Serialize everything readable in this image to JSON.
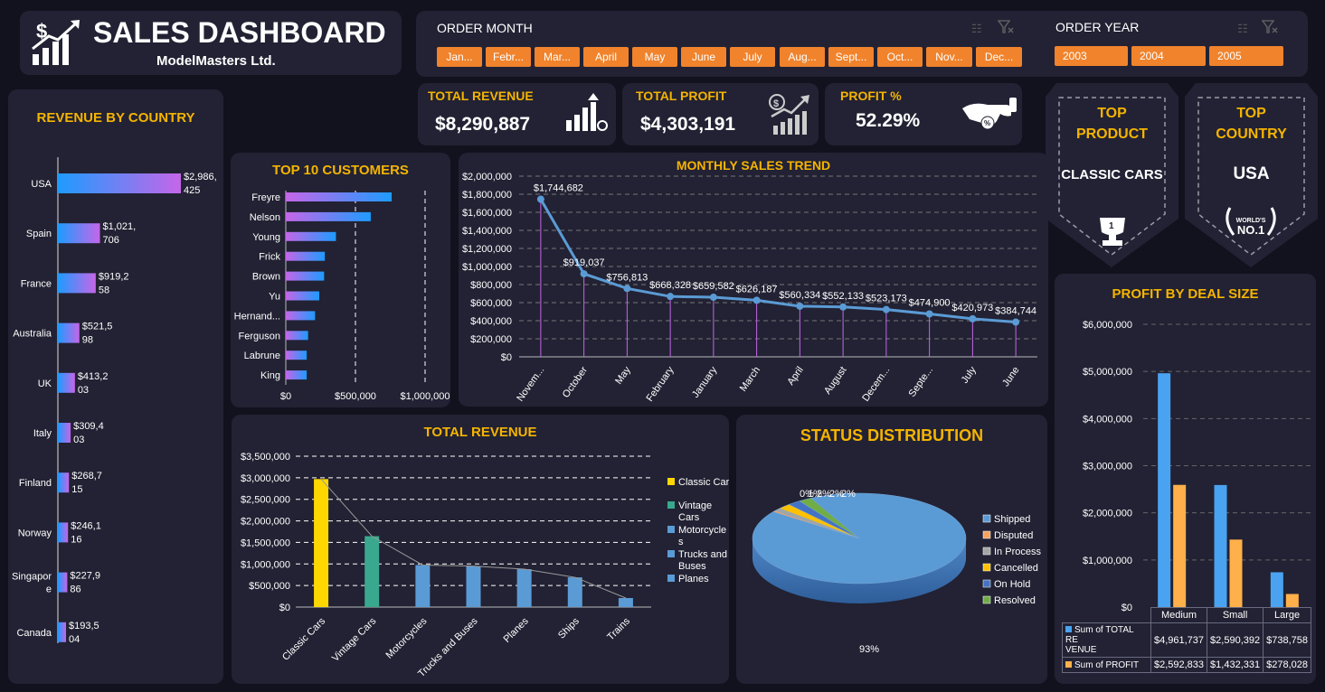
{
  "header": {
    "title": "SALES DASHBOARD",
    "subtitle": "ModelMasters Ltd."
  },
  "order_month": {
    "label": "ORDER MONTH",
    "months": [
      "Jan...",
      "Febr...",
      "Mar...",
      "April",
      "May",
      "June",
      "July",
      "Aug...",
      "Sept...",
      "Oct...",
      "Nov...",
      "Dec..."
    ]
  },
  "order_year": {
    "label": "ORDER YEAR",
    "years": [
      "2003",
      "2004",
      "2005"
    ]
  },
  "kpis": {
    "revenue": {
      "label": "TOTAL REVENUE",
      "value": "$8,290,887"
    },
    "profit": {
      "label": "TOTAL PROFIT",
      "value": "$4,303,191"
    },
    "profit_pct": {
      "label": "PROFIT %",
      "value": "52.29%"
    }
  },
  "top_product": {
    "line1": "TOP",
    "line2": "PRODUCT",
    "value": "CLASSIC CARS"
  },
  "top_country": {
    "line1": "TOP",
    "line2": "COUNTRY",
    "value": "USA",
    "badge_top": "WORLD'S",
    "badge_main": "NO.1"
  },
  "colors": {
    "accent": "#f5b400",
    "slicer": "#f0832c",
    "panel": "#222234",
    "background": "#12121f"
  },
  "chart_data": [
    {
      "type": "bar",
      "title": "REVENUE BY COUNTRY",
      "orientation": "horizontal",
      "categories": [
        "USA",
        "Spain",
        "France",
        "Australia",
        "UK",
        "Italy",
        "Finland",
        "Norway",
        "Singapore",
        "Canada"
      ],
      "category_display": [
        [
          "USA"
        ],
        [
          "Spain"
        ],
        [
          "France"
        ],
        [
          "Australia"
        ],
        [
          "UK"
        ],
        [
          "Italy"
        ],
        [
          "Finland"
        ],
        [
          "Norway"
        ],
        [
          "Singapor",
          "e"
        ],
        [
          "Canada"
        ]
      ],
      "values": [
        2986425,
        1021706,
        919258,
        521598,
        413203,
        309403,
        268715,
        246116,
        227986,
        193504
      ],
      "labels": [
        [
          "$2,986,",
          "425"
        ],
        [
          "$1,021,",
          "706"
        ],
        [
          "$919,2",
          "58"
        ],
        [
          "$521,5",
          "98"
        ],
        [
          "$413,2",
          "03"
        ],
        [
          "$309,4",
          "03"
        ],
        [
          "$268,7",
          "15"
        ],
        [
          "$246,1",
          "16"
        ],
        [
          "$227,9",
          "86"
        ],
        [
          "$193,5",
          "04"
        ]
      ]
    },
    {
      "type": "bar",
      "title": "TOP 10 CUSTOMERS",
      "orientation": "horizontal",
      "categories": [
        "Freyre",
        "Nelson",
        "Young",
        "Frick",
        "Brown",
        "Yu",
        "Hernand...",
        "Ferguson",
        "Labrune",
        "King"
      ],
      "values": [
        760000,
        610000,
        360000,
        280000,
        275000,
        240000,
        210000,
        160000,
        150000,
        150000
      ],
      "xlim": [
        0,
        1000000
      ],
      "x_ticks": [
        "$0",
        "$500,000",
        "$1,000,000"
      ]
    },
    {
      "type": "line",
      "title": "MONTHLY SALES TREND",
      "categories": [
        "Novem...",
        "October",
        "May",
        "February",
        "January",
        "March",
        "April",
        "August",
        "Decem...",
        "Septe...",
        "July",
        "June"
      ],
      "values": [
        1744682,
        919037,
        756813,
        668328,
        659582,
        626187,
        560334,
        552133,
        523173,
        474900,
        420973,
        384744
      ],
      "labels": [
        "$1,744,682",
        "$919,037",
        "$756,813",
        "$668,328",
        "$659,582",
        "$626,187",
        "$560,334",
        "$552,133",
        "$523,173",
        "$474,900",
        "$420,973",
        "$384,744"
      ],
      "ylim": [
        0,
        2000000
      ],
      "y_ticks": [
        "$0",
        "$200,000",
        "$400,000",
        "$600,000",
        "$800,000",
        "$1,000,000",
        "$1,200,000",
        "$1,400,000",
        "$1,600,000",
        "$1,800,000",
        "$2,000,000"
      ]
    },
    {
      "type": "bar",
      "title": "TOTAL REVENUE",
      "categories": [
        "Classic Cars",
        "Vintage Cars",
        "Motorcycles",
        "Trucks and Buses",
        "Planes",
        "Ships",
        "Trains"
      ],
      "values": [
        2970000,
        1645000,
        975000,
        950000,
        880000,
        690000,
        210000
      ],
      "colors": [
        "#ffd700",
        "#3aa88e",
        "#5b9bd5",
        "#5b9bd5",
        "#5b9bd5",
        "#5b9bd5",
        "#5b9bd5"
      ],
      "ylim": [
        0,
        3500000
      ],
      "y_ticks": [
        "$0",
        "$500,000",
        "$1,000,000",
        "$1,500,000",
        "$2,000,000",
        "$2,500,000",
        "$3,000,000",
        "$3,500,000"
      ],
      "legend": [
        {
          "name": "Classic Cars",
          "color": "#ffd700",
          "lines": [
            "Classic Cars"
          ]
        },
        {
          "name": "Vintage Cars",
          "color": "#3aa88e",
          "lines": [
            "Vintage",
            "Cars"
          ]
        },
        {
          "name": "Motorcycles",
          "color": "#5b9bd5",
          "lines": [
            "Motorcycle",
            "s"
          ]
        },
        {
          "name": "Trucks and Buses",
          "color": "#5b9bd5",
          "lines": [
            "Trucks and",
            "Buses"
          ]
        },
        {
          "name": "Planes",
          "color": "#5b9bd5",
          "lines": [
            "Planes"
          ]
        }
      ]
    },
    {
      "type": "pie",
      "title": "STATUS DISTRIBUTION",
      "categories": [
        "Shipped",
        "Disputed",
        "In Process",
        "Cancelled",
        "On Hold",
        "Resolved"
      ],
      "values": [
        93,
        0.5,
        1,
        2,
        2,
        2
      ],
      "labels": [
        "93%",
        "0%",
        "1%",
        "2%",
        "2%",
        "2%"
      ],
      "colors": [
        "#5b9bd5",
        "#f4a460",
        "#a5a5a5",
        "#ffc000",
        "#4472c4",
        "#70ad47"
      ]
    },
    {
      "type": "bar",
      "title": "PROFIT BY DEAL SIZE",
      "categories": [
        "Medium",
        "Small",
        "Large"
      ],
      "series": [
        {
          "name": "Sum of TOTAL REVENUE",
          "label_lines": [
            "Sum of TOTAL RE",
            "VENUE"
          ],
          "color": "#4aa3f0",
          "values": [
            4961737,
            2590392,
            738758
          ],
          "display": [
            "$4,961,737",
            "$2,590,392",
            "$738,758"
          ]
        },
        {
          "name": "Sum of PROFIT",
          "label_lines": [
            "Sum of PROFIT"
          ],
          "color": "#ffb04a",
          "values": [
            2592833,
            1432331,
            278028
          ],
          "display": [
            "$2,592,833",
            "$1,432,331",
            "$278,028"
          ]
        }
      ],
      "ylim": [
        0,
        6000000
      ],
      "y_ticks": [
        "$0",
        "$1,000,000",
        "$2,000,000",
        "$3,000,000",
        "$4,000,000",
        "$5,000,000",
        "$6,000,000"
      ]
    }
  ]
}
